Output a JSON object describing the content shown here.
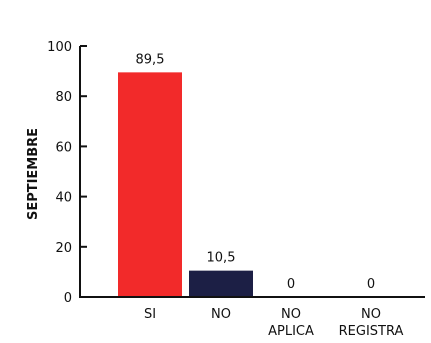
{
  "chart_data": {
    "type": "bar",
    "title": "",
    "xlabel": "",
    "ylabel": "SEPTIEMBRE",
    "ylim": [
      0,
      100
    ],
    "yticks": [
      "0",
      "20",
      "40",
      "60",
      "80",
      "100"
    ],
    "grid": false,
    "categories": [
      [
        "SI"
      ],
      [
        "NO"
      ],
      [
        "NO",
        "APLICA"
      ],
      [
        "NO",
        "REGISTRA"
      ]
    ],
    "values": [
      89.5,
      10.5,
      0,
      0
    ],
    "data_labels": [
      "89,5",
      "10,5",
      "0",
      "0"
    ],
    "bar_colors": [
      "#f22a2a",
      "#1c1f45",
      "#1c1f45",
      "#1c1f45"
    ]
  }
}
